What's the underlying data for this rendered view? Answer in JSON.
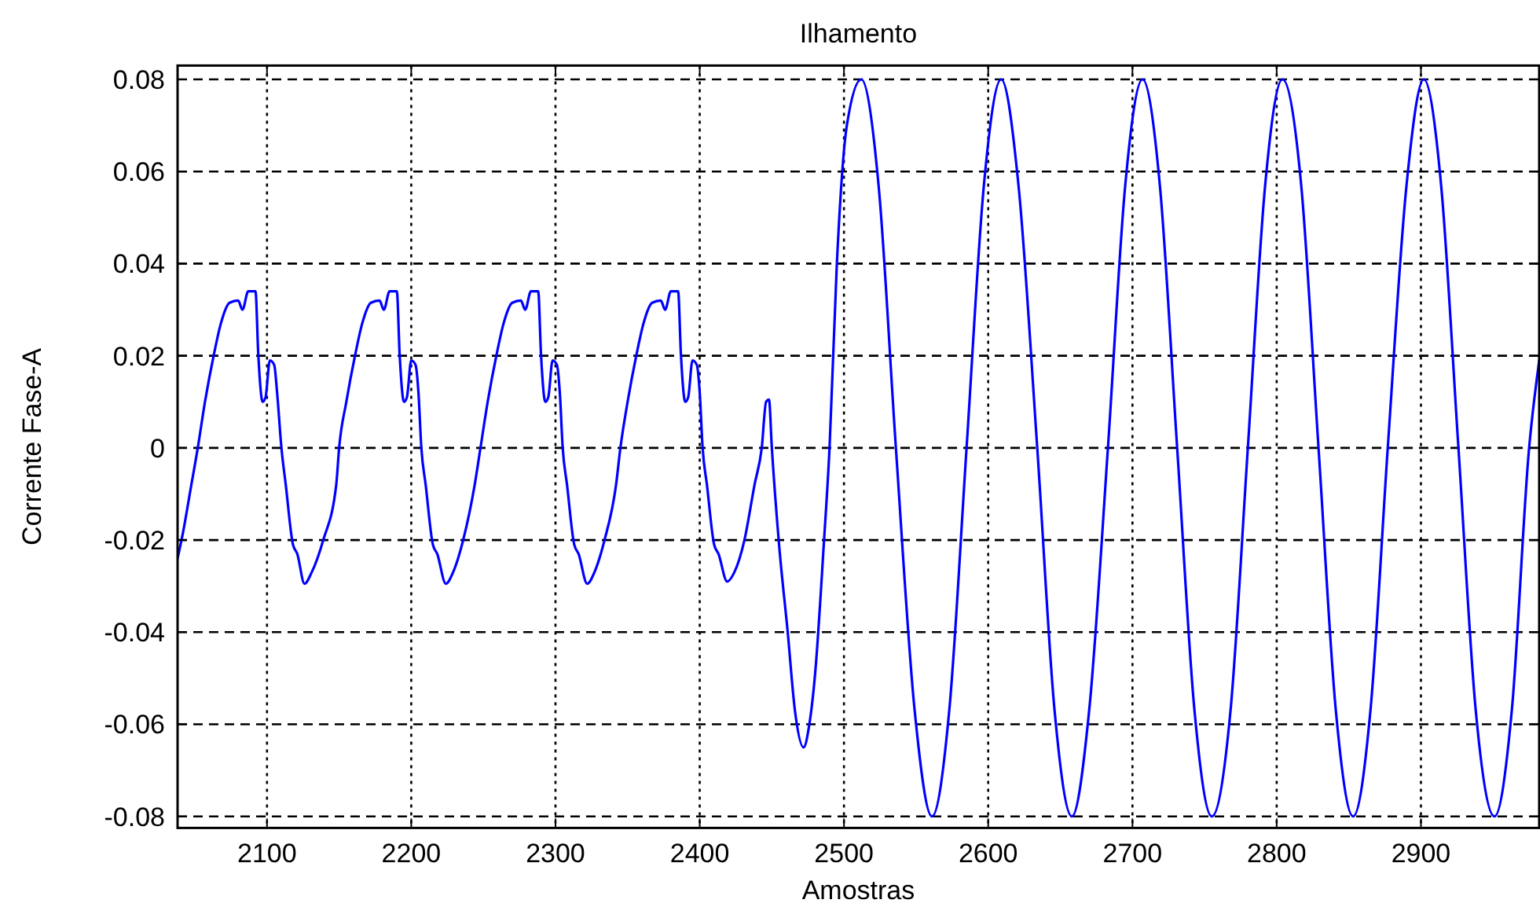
{
  "chart_data": {
    "type": "line",
    "title": "Ilhamento",
    "xlabel": "Amostras",
    "ylabel": "Corrente Fase-A",
    "xlim": [
      2038,
      2982
    ],
    "ylim": [
      -0.0825,
      0.083
    ],
    "xticks": [
      2100,
      2200,
      2300,
      2400,
      2500,
      2600,
      2700,
      2800,
      2900
    ],
    "yticks": [
      {
        "value": -0.08,
        "label": "-0.08"
      },
      {
        "value": -0.06,
        "label": "-0.06"
      },
      {
        "value": -0.04,
        "label": "-0.04"
      },
      {
        "value": -0.02,
        "label": "-0.02"
      },
      0,
      {
        "value": 0.02,
        "label": "0.02"
      },
      {
        "value": 0.04,
        "label": "0.04"
      },
      {
        "value": 0.06,
        "label": "0.06"
      },
      {
        "value": 0.08,
        "label": "0.08"
      }
    ],
    "grid": true,
    "marker": "none",
    "line_style": "solid",
    "series": [
      {
        "color": "#0000ff",
        "x": [
          2038,
          2042,
          2047,
          2052,
          2057,
          2063,
          2068,
          2074,
          2080,
          2083,
          2087,
          2092,
          2094,
          2097,
          2099,
          2102,
          2105,
          2107,
          2110,
          2113,
          2118,
          2121,
          2126,
          2131,
          2139,
          2148,
          2150,
          2155,
          2161,
          2166,
          2172,
          2178,
          2181,
          2185,
          2190,
          2192,
          2195,
          2197,
          2200,
          2203,
          2205,
          2207,
          2210,
          2215,
          2218,
          2224,
          2229,
          2236,
          2244,
          2248,
          2253,
          2259,
          2264,
          2270,
          2276,
          2279,
          2283,
          2288,
          2290,
          2293,
          2295,
          2298,
          2301,
          2303,
          2305,
          2308,
          2313,
          2316,
          2322,
          2327,
          2334,
          2342,
          2345,
          2350,
          2356,
          2361,
          2367,
          2373,
          2376,
          2380,
          2385,
          2387,
          2390,
          2392,
          2395,
          2398,
          2400,
          2402,
          2405,
          2410,
          2413,
          2419,
          2424,
          2431,
          2438,
          2443,
          2446,
          2448,
          2450,
          2455,
          2461,
          2466,
          2472,
          2476,
          2480,
          2486,
          2490,
          2495,
          2502,
          2512,
          2524,
          2536,
          2549,
          2561,
          2573,
          2585,
          2597,
          2609,
          2621,
          2634,
          2646,
          2658,
          2670,
          2683,
          2695,
          2707,
          2719,
          2731,
          2743,
          2755,
          2768,
          2780,
          2792,
          2804,
          2817,
          2829,
          2841,
          2853,
          2865,
          2877,
          2890,
          2902,
          2914,
          2926,
          2938,
          2951,
          2963,
          2975,
          2982
        ],
        "values": [
          -0.024,
          -0.018,
          -0.009,
          0,
          0.01,
          0.02,
          0.027,
          0.0315,
          0.032,
          0.03,
          0.034,
          0.034,
          0.02,
          0.01,
          0.011,
          0.019,
          0.018,
          0.012,
          0,
          -0.008,
          -0.021,
          -0.023,
          -0.0295,
          -0.027,
          -0.02,
          -0.008,
          0,
          0.01,
          0.02,
          0.027,
          0.0315,
          0.032,
          0.03,
          0.034,
          0.034,
          0.02,
          0.01,
          0.011,
          0.019,
          0.018,
          0.012,
          0,
          -0.008,
          -0.021,
          -0.023,
          -0.0295,
          -0.027,
          -0.02,
          -0.008,
          0,
          0.01,
          0.02,
          0.027,
          0.0315,
          0.032,
          0.03,
          0.034,
          0.034,
          0.02,
          0.01,
          0.011,
          0.019,
          0.018,
          0.012,
          0,
          -0.008,
          -0.021,
          -0.023,
          -0.0295,
          -0.027,
          -0.02,
          -0.008,
          0,
          0.01,
          0.02,
          0.027,
          0.0315,
          0.032,
          0.03,
          0.034,
          0.034,
          0.02,
          0.01,
          0.011,
          0.019,
          0.018,
          0.012,
          0,
          -0.008,
          -0.021,
          -0.023,
          -0.029,
          -0.027,
          -0.02,
          -0.008,
          0,
          0.01,
          0.0105,
          0,
          -0.021,
          -0.04,
          -0.057,
          -0.065,
          -0.06,
          -0.049,
          -0.021,
          0,
          0.0395,
          0.07,
          0.08,
          0.057,
          0,
          -0.057,
          -0.08,
          -0.057,
          0,
          0.057,
          0.08,
          0.057,
          0,
          -0.057,
          -0.08,
          -0.057,
          0,
          0.057,
          0.08,
          0.057,
          0,
          -0.057,
          -0.08,
          -0.057,
          0,
          0.057,
          0.08,
          0.057,
          0,
          -0.057,
          -0.08,
          -0.057,
          0,
          0.057,
          0.08,
          0.057,
          0,
          -0.057,
          -0.08,
          -0.057,
          0,
          0.019
        ]
      }
    ]
  }
}
